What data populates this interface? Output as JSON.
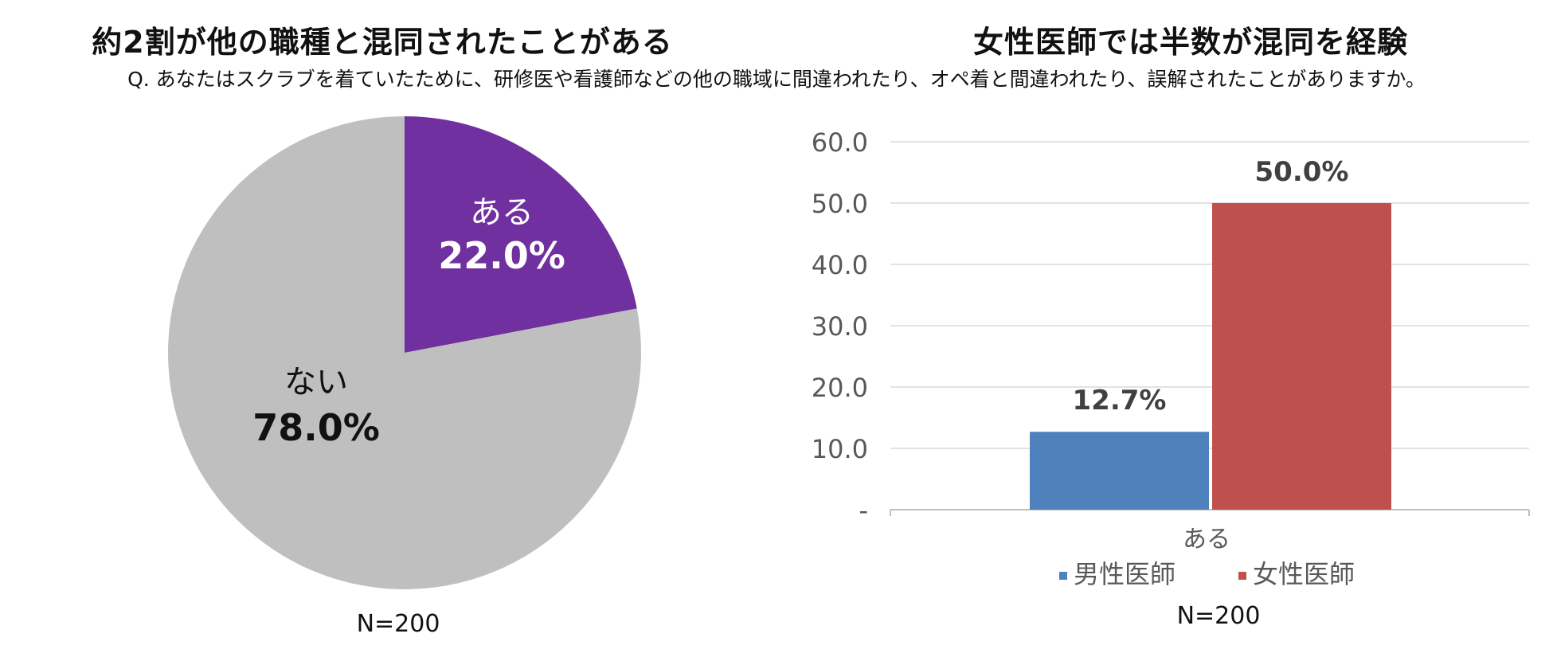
{
  "colors": {
    "pie_yes": "#7030A0",
    "pie_no": "#BFBFBF",
    "male": "#4F81BD",
    "female": "#C0504D",
    "grid": "#D9D9D9",
    "axis_text": "#595959",
    "label_text": "#404040"
  },
  "question": "Q. あなたはスクラブを着ていたために、研修医や看護師などの他の職域に間違われたり、オペ着と間違われたり、誤解されたことがありますか。",
  "chart_data": [
    {
      "type": "pie",
      "title": "約2割が他の職種と混同されたことがある",
      "slices": [
        {
          "label": "ある",
          "value": 22.0,
          "value_label": "22.0%",
          "color_key": "pie_yes"
        },
        {
          "label": "ない",
          "value": 78.0,
          "value_label": "78.0%",
          "color_key": "pie_no"
        }
      ],
      "note": "N=200"
    },
    {
      "type": "bar",
      "title": "女性医師では半数が混同を経験",
      "categories": [
        "ある"
      ],
      "series": [
        {
          "name": "男性医師",
          "values": [
            12.7
          ],
          "value_labels": [
            "12.7%"
          ],
          "color_key": "male"
        },
        {
          "name": "女性医師",
          "values": [
            50.0
          ],
          "value_labels": [
            "50.0%"
          ],
          "color_key": "female"
        }
      ],
      "ylim": [
        0,
        60
      ],
      "yticks": [
        0,
        10,
        20,
        30,
        40,
        50,
        60
      ],
      "ytick_labels": [
        "-",
        "10.0",
        "20.0",
        "30.0",
        "40.0",
        "50.0",
        "60.0"
      ],
      "grid": true,
      "legend_position": "bottom",
      "note": "N=200"
    }
  ]
}
